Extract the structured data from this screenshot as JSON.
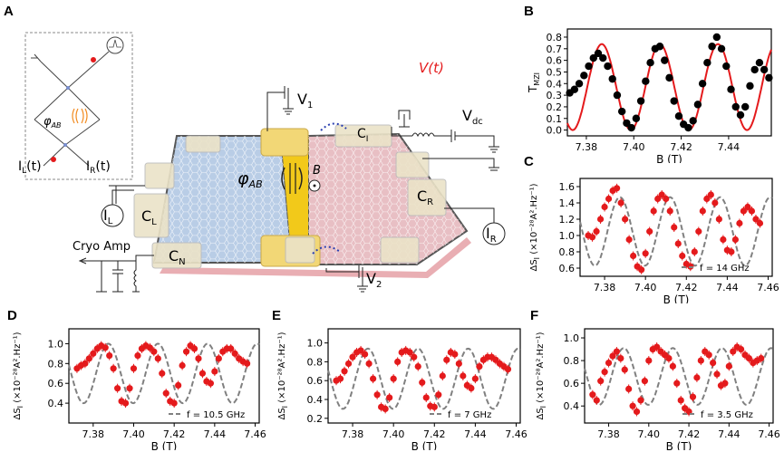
{
  "panels": {
    "A": {
      "letter": "A",
      "labels": {
        "phi_ab": "φ",
        "phi_ab_sub": "AB",
        "v1": "V",
        "v1_sub": "1",
        "v2": "V",
        "v2_sub": "2",
        "vdc": "V",
        "vdc_sub": "dc",
        "vt": "V(t)",
        "cl": "C",
        "cl_sub": "L",
        "cr": "C",
        "cr_sub": "R",
        "cn": "C",
        "cn_sub": "N",
        "ci": "C",
        "ci_sub": "I",
        "il": "I",
        "il_sub": "L",
        "ir": "I",
        "ir_sub": "R",
        "cryo_amp": "Cryo Amp",
        "inset_phi": "φ",
        "inset_phi_sub": "AB",
        "inset_il": "I",
        "inset_il_sub": "L",
        "inset_il_suffix": "(t)",
        "inset_ir": "I",
        "inset_ir_sub": "R",
        "inset_ir_suffix": "(t)",
        "bfield": "B"
      }
    },
    "B": {
      "letter": "B"
    },
    "C": {
      "letter": "C"
    },
    "D": {
      "letter": "D"
    },
    "E": {
      "letter": "E"
    },
    "F": {
      "letter": "F"
    }
  },
  "colors": {
    "data_red": "#e41a1c",
    "data_black": "#000000",
    "fit_red": "#e41a1c",
    "fit_gray": "#808080",
    "graphene_blue": "#b9cde6",
    "graphene_pink": "#e8bfc4",
    "gold": "#f2c91a"
  },
  "chart_data": [
    {
      "id": "B",
      "type": "scatter",
      "ylabel": "T",
      "ylabel_sub": "MZI",
      "xlabel": "B (T)",
      "xlim": [
        7.372,
        7.458
      ],
      "ylim": [
        -0.05,
        0.87
      ],
      "xticks": [
        "7.38",
        "7.40",
        "7.42",
        "7.44"
      ],
      "xtick_values": [
        7.38,
        7.4,
        7.42,
        7.44
      ],
      "yticks": [
        "0.0",
        "0.1",
        "0.2",
        "0.3",
        "0.4",
        "0.5",
        "0.6",
        "0.7",
        "0.8"
      ],
      "ytick_values": [
        0.0,
        0.1,
        0.2,
        0.3,
        0.4,
        0.5,
        0.6,
        0.7,
        0.8
      ],
      "series": [
        {
          "role": "points",
          "color": "#000000",
          "x": [
            7.373,
            7.375,
            7.377,
            7.379,
            7.381,
            7.383,
            7.385,
            7.387,
            7.389,
            7.391,
            7.393,
            7.395,
            7.397,
            7.399,
            7.401,
            7.403,
            7.405,
            7.407,
            7.409,
            7.411,
            7.413,
            7.415,
            7.417,
            7.419,
            7.421,
            7.423,
            7.425,
            7.427,
            7.429,
            7.431,
            7.433,
            7.435,
            7.437,
            7.439,
            7.441,
            7.443,
            7.445,
            7.447,
            7.449,
            7.451,
            7.453,
            7.455,
            7.457
          ],
          "y": [
            0.32,
            0.35,
            0.4,
            0.47,
            0.55,
            0.62,
            0.66,
            0.62,
            0.55,
            0.44,
            0.3,
            0.16,
            0.06,
            0.02,
            0.1,
            0.25,
            0.42,
            0.58,
            0.7,
            0.72,
            0.6,
            0.45,
            0.25,
            0.12,
            0.05,
            0.02,
            0.08,
            0.22,
            0.4,
            0.58,
            0.72,
            0.8,
            0.7,
            0.55,
            0.35,
            0.2,
            0.13,
            0.2,
            0.38,
            0.52,
            0.58,
            0.52,
            0.45
          ]
        },
        {
          "role": "fit",
          "color": "#e41a1c",
          "period": 0.0245,
          "phase_x": 7.3865,
          "amp": 0.37,
          "offset": 0.37
        }
      ]
    },
    {
      "id": "C",
      "type": "scatter",
      "ylabel": "ΔS",
      "ylabel_sub": "I",
      "ylabel_suffix": " (×10⁻²⁸A².Hz⁻¹)",
      "xlabel": "B (T)",
      "legend": "f = 14 GHz",
      "xlim": [
        7.368,
        7.462
      ],
      "ylim": [
        0.5,
        1.7
      ],
      "xticks": [
        "7.38",
        "7.40",
        "7.42",
        "7.44",
        "7.46"
      ],
      "xtick_values": [
        7.38,
        7.4,
        7.42,
        7.44,
        7.46
      ],
      "yticks": [
        "0.6",
        "0.8",
        "1.0",
        "1.2",
        "1.4",
        "1.6"
      ],
      "ytick_values": [
        0.6,
        0.8,
        1.0,
        1.2,
        1.4,
        1.6
      ],
      "series": [
        {
          "role": "points",
          "color": "#e41a1c",
          "x": [
            7.372,
            7.374,
            7.376,
            7.378,
            7.38,
            7.382,
            7.384,
            7.386,
            7.388,
            7.39,
            7.392,
            7.394,
            7.396,
            7.398,
            7.4,
            7.402,
            7.404,
            7.406,
            7.408,
            7.41,
            7.412,
            7.414,
            7.416,
            7.418,
            7.42,
            7.422,
            7.424,
            7.426,
            7.428,
            7.43,
            7.432,
            7.434,
            7.436,
            7.438,
            7.44,
            7.442,
            7.444,
            7.446,
            7.448,
            7.45,
            7.452,
            7.454,
            7.456
          ],
          "y": [
            1.0,
            0.98,
            1.05,
            1.2,
            1.35,
            1.45,
            1.55,
            1.58,
            1.4,
            1.2,
            0.95,
            0.75,
            0.62,
            0.58,
            0.78,
            1.05,
            1.3,
            1.45,
            1.5,
            1.45,
            1.3,
            1.1,
            0.9,
            0.75,
            0.65,
            0.62,
            0.8,
            1.05,
            1.3,
            1.45,
            1.5,
            1.4,
            1.2,
            0.95,
            0.82,
            0.8,
            0.95,
            1.15,
            1.3,
            1.35,
            1.3,
            1.2,
            1.15
          ]
        },
        {
          "role": "fit",
          "color": "#808080",
          "period": 0.0245,
          "phase_x": 7.3875,
          "amp": 0.42,
          "offset": 1.05
        }
      ]
    },
    {
      "id": "D",
      "type": "scatter",
      "ylabel": "ΔS",
      "ylabel_sub": "I",
      "ylabel_suffix": " (×10⁻²⁸A².Hz⁻¹)",
      "xlabel": "B (T)",
      "legend": "f = 10.5 GHz",
      "xlim": [
        7.368,
        7.462
      ],
      "ylim": [
        0.2,
        1.15
      ],
      "xticks": [
        "7.38",
        "7.40",
        "7.42",
        "7.44",
        "7.46"
      ],
      "xtick_values": [
        7.38,
        7.4,
        7.42,
        7.44,
        7.46
      ],
      "yticks": [
        "0.4",
        "0.6",
        "0.8",
        "1.0"
      ],
      "ytick_values": [
        0.4,
        0.6,
        0.8,
        1.0
      ],
      "series": [
        {
          "role": "points",
          "color": "#e41a1c",
          "x": [
            7.372,
            7.374,
            7.376,
            7.378,
            7.38,
            7.382,
            7.384,
            7.386,
            7.388,
            7.39,
            7.392,
            7.394,
            7.396,
            7.398,
            7.4,
            7.402,
            7.404,
            7.406,
            7.408,
            7.41,
            7.412,
            7.414,
            7.416,
            7.418,
            7.42,
            7.422,
            7.424,
            7.426,
            7.428,
            7.43,
            7.432,
            7.434,
            7.436,
            7.438,
            7.44,
            7.442,
            7.444,
            7.446,
            7.448,
            7.45,
            7.452,
            7.454,
            7.456
          ],
          "y": [
            0.75,
            0.78,
            0.8,
            0.85,
            0.9,
            0.95,
            0.98,
            0.96,
            0.88,
            0.75,
            0.55,
            0.42,
            0.4,
            0.55,
            0.75,
            0.88,
            0.95,
            0.98,
            0.96,
            0.92,
            0.85,
            0.7,
            0.5,
            0.42,
            0.4,
            0.58,
            0.78,
            0.92,
            0.98,
            0.95,
            0.85,
            0.7,
            0.62,
            0.6,
            0.72,
            0.85,
            0.92,
            0.95,
            0.95,
            0.9,
            0.85,
            0.82,
            0.8
          ]
        },
        {
          "role": "fit",
          "color": "#808080",
          "period": 0.0245,
          "phase_x": 7.3875,
          "amp": 0.3,
          "offset": 0.7
        }
      ]
    },
    {
      "id": "E",
      "type": "scatter",
      "ylabel": "ΔS",
      "ylabel_sub": "I",
      "ylabel_suffix": " (×10⁻²⁸A².Hz⁻¹)",
      "xlabel": "B (T)",
      "legend": "f = 7 GHz",
      "xlim": [
        7.368,
        7.462
      ],
      "ylim": [
        0.15,
        1.15
      ],
      "xticks": [
        "7.38",
        "7.40",
        "7.42",
        "7.44",
        "7.46"
      ],
      "xtick_values": [
        7.38,
        7.4,
        7.42,
        7.44,
        7.46
      ],
      "yticks": [
        "0.2",
        "0.4",
        "0.6",
        "0.8",
        "1.0"
      ],
      "ytick_values": [
        0.2,
        0.4,
        0.6,
        0.8,
        1.0
      ],
      "series": [
        {
          "role": "points",
          "color": "#e41a1c",
          "x": [
            7.372,
            7.374,
            7.376,
            7.378,
            7.38,
            7.382,
            7.384,
            7.386,
            7.388,
            7.39,
            7.392,
            7.394,
            7.396,
            7.398,
            7.4,
            7.402,
            7.404,
            7.406,
            7.408,
            7.41,
            7.412,
            7.414,
            7.416,
            7.418,
            7.42,
            7.422,
            7.424,
            7.426,
            7.428,
            7.43,
            7.432,
            7.434,
            7.436,
            7.438,
            7.44,
            7.442,
            7.444,
            7.446,
            7.448,
            7.45,
            7.452,
            7.454,
            7.456
          ],
          "y": [
            0.6,
            0.62,
            0.7,
            0.78,
            0.85,
            0.9,
            0.92,
            0.88,
            0.78,
            0.62,
            0.45,
            0.32,
            0.3,
            0.42,
            0.62,
            0.8,
            0.9,
            0.92,
            0.9,
            0.85,
            0.75,
            0.58,
            0.42,
            0.33,
            0.32,
            0.45,
            0.65,
            0.82,
            0.9,
            0.88,
            0.78,
            0.65,
            0.55,
            0.52,
            0.62,
            0.75,
            0.82,
            0.85,
            0.85,
            0.82,
            0.78,
            0.75,
            0.72
          ]
        },
        {
          "role": "fit",
          "color": "#808080",
          "period": 0.0245,
          "phase_x": 7.3875,
          "amp": 0.32,
          "offset": 0.62
        }
      ]
    },
    {
      "id": "F",
      "type": "scatter",
      "ylabel": "ΔS",
      "ylabel_sub": "I",
      "ylabel_suffix": " (×10⁻²⁸A².Hz⁻¹)",
      "xlabel": "B (T)",
      "legend": "f = 3.5 GHz",
      "xlim": [
        7.368,
        7.462
      ],
      "ylim": [
        0.25,
        1.08
      ],
      "xticks": [
        "7.38",
        "7.40",
        "7.42",
        "7.44",
        "7.46"
      ],
      "xtick_values": [
        7.38,
        7.4,
        7.42,
        7.44,
        7.46
      ],
      "yticks": [
        "0.4",
        "0.6",
        "0.8",
        "1.0"
      ],
      "ytick_values": [
        0.4,
        0.6,
        0.8,
        1.0
      ],
      "series": [
        {
          "role": "points",
          "color": "#e41a1c",
          "x": [
            7.372,
            7.374,
            7.376,
            7.378,
            7.38,
            7.382,
            7.384,
            7.386,
            7.388,
            7.39,
            7.392,
            7.394,
            7.396,
            7.398,
            7.4,
            7.402,
            7.404,
            7.406,
            7.408,
            7.41,
            7.412,
            7.414,
            7.416,
            7.418,
            7.42,
            7.422,
            7.424,
            7.426,
            7.428,
            7.43,
            7.432,
            7.434,
            7.436,
            7.438,
            7.44,
            7.442,
            7.444,
            7.446,
            7.448,
            7.45,
            7.452,
            7.454,
            7.456
          ],
          "y": [
            0.5,
            0.45,
            0.62,
            0.7,
            0.78,
            0.84,
            0.88,
            0.82,
            0.72,
            0.55,
            0.4,
            0.35,
            0.45,
            0.62,
            0.8,
            0.9,
            0.92,
            0.88,
            0.85,
            0.82,
            0.75,
            0.6,
            0.45,
            0.38,
            0.35,
            0.48,
            0.65,
            0.8,
            0.88,
            0.85,
            0.78,
            0.68,
            0.58,
            0.6,
            0.75,
            0.88,
            0.92,
            0.9,
            0.85,
            0.82,
            0.78,
            0.8,
            0.82
          ]
        },
        {
          "role": "fit",
          "color": "#808080",
          "period": 0.0245,
          "phase_x": 7.3875,
          "amp": 0.25,
          "offset": 0.66
        }
      ]
    }
  ]
}
